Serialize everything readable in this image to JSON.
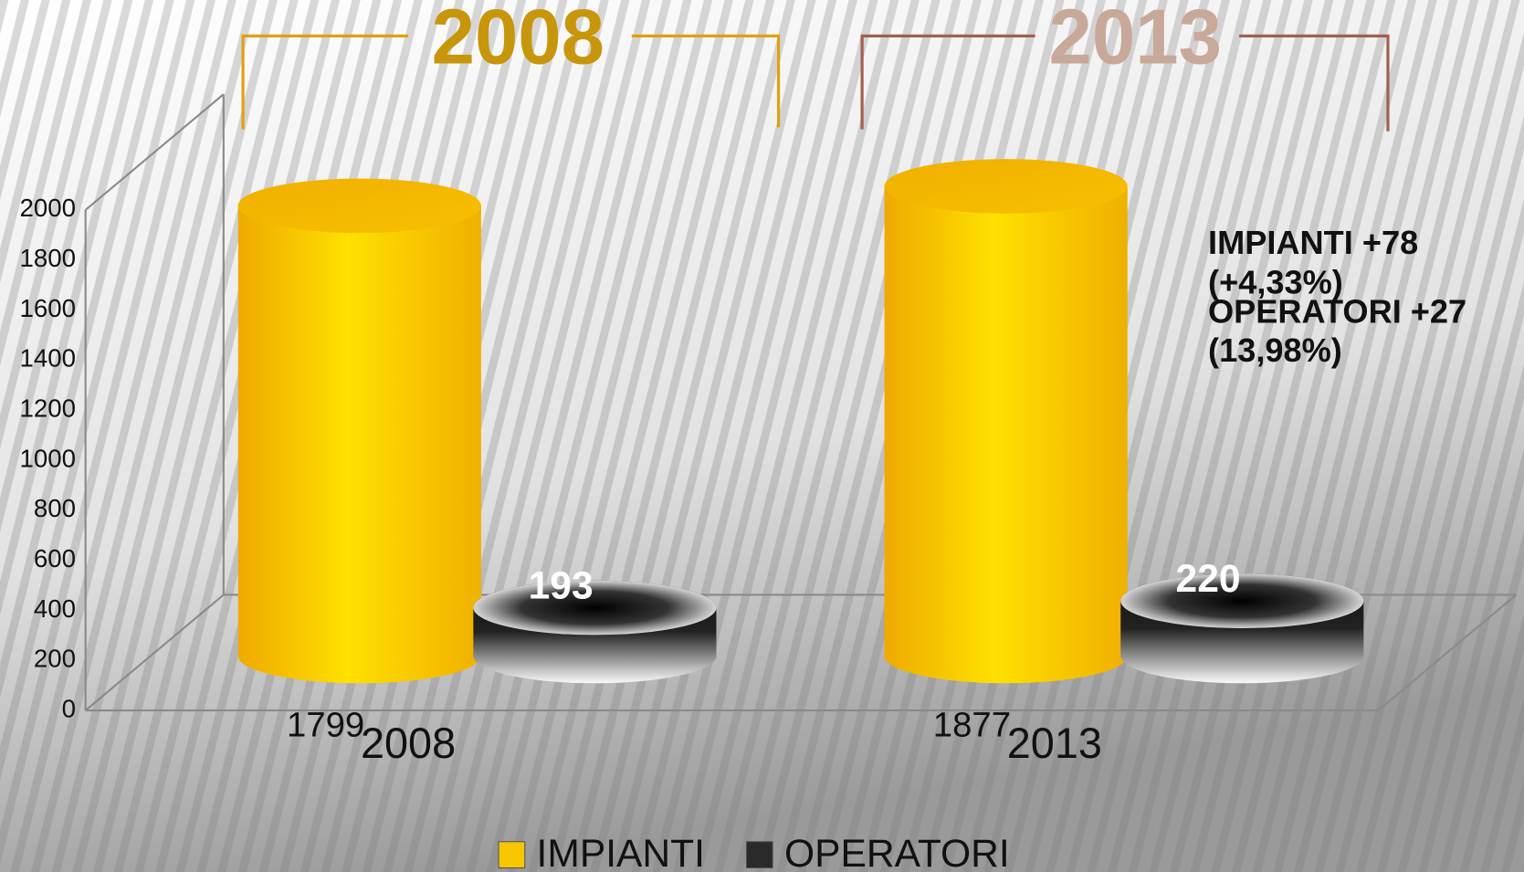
{
  "chart_data": {
    "type": "bar3d-cylinder",
    "headings": [
      "2008",
      "2013"
    ],
    "categories": [
      "2008",
      "2013"
    ],
    "series": [
      {
        "name": "IMPIANTI",
        "color": "#f7c600",
        "values": [
          1799,
          1877
        ]
      },
      {
        "name": "OPERATORI",
        "color": "#2a2a2a",
        "values": [
          193,
          220
        ]
      }
    ],
    "ylim": [
      0,
      2000
    ],
    "yticks": [
      0,
      200,
      400,
      600,
      800,
      1000,
      1200,
      1400,
      1600,
      1800,
      2000
    ],
    "grid": false,
    "annotations": [
      "IMPIANTI +78",
      "(+4,33%)",
      "OPERATORI +27",
      "(13,98%)"
    ],
    "legend": "bottom"
  }
}
